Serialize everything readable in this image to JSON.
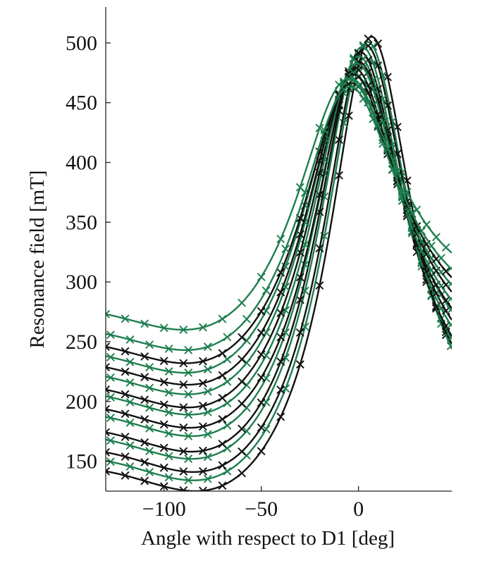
{
  "chart_data": {
    "type": "line",
    "xlabel": "Angle with respect to D1 [deg]",
    "ylabel": "Resonance field [mT]",
    "xlim": [
      -130,
      48
    ],
    "ylim": [
      125,
      530
    ],
    "xticks": [
      -100,
      -50,
      0
    ],
    "yticks": [
      150,
      200,
      250,
      300,
      350,
      400,
      450,
      500
    ],
    "xtick_labels": [
      "−100",
      "−50",
      "0"
    ],
    "ytick_labels": [
      "150",
      "200",
      "250",
      "300",
      "350",
      "400",
      "450",
      "500"
    ],
    "grid": false,
    "legend": "none",
    "colors": {
      "black": "#111111",
      "green": "#1e7e4e"
    },
    "marker": "x",
    "marker_x": [
      -130,
      -120,
      -110,
      -100,
      -90,
      -80,
      -70,
      -60,
      -50,
      -40,
      -30,
      -20,
      -10,
      -5,
      0,
      5,
      10,
      15,
      20,
      25,
      30,
      35,
      40,
      45
    ],
    "curve_params": [
      {
        "color": "black",
        "amp": 378,
        "center": 6,
        "width": 26.4,
        "base": 137,
        "mincenter": -84,
        "minwidth": 43
      },
      {
        "color": "green",
        "amp": 365,
        "center": 4,
        "width": 26.8,
        "base": 146,
        "mincenter": -85,
        "minwidth": 43
      },
      {
        "color": "black",
        "amp": 356,
        "center": 3,
        "width": 27.2,
        "base": 153,
        "mincenter": -85,
        "minwidth": 43
      },
      {
        "color": "green",
        "amp": 344,
        "center": 1,
        "width": 27.6,
        "base": 164,
        "mincenter": -86,
        "minwidth": 44
      },
      {
        "color": "black",
        "amp": 334,
        "center": 0,
        "width": 28.0,
        "base": 170,
        "mincenter": -86,
        "minwidth": 44
      },
      {
        "color": "green",
        "amp": 318,
        "center": -1,
        "width": 28.4,
        "base": 183,
        "mincenter": -86,
        "minwidth": 44
      },
      {
        "color": "black",
        "amp": 305,
        "center": -1,
        "width": 28.8,
        "base": 190,
        "mincenter": -87,
        "minwidth": 44
      },
      {
        "color": "green",
        "amp": 293,
        "center": -2,
        "width": 29.2,
        "base": 201,
        "mincenter": -87,
        "minwidth": 45
      },
      {
        "color": "black",
        "amp": 282,
        "center": -3,
        "width": 29.6,
        "base": 207,
        "mincenter": -88,
        "minwidth": 45
      },
      {
        "color": "green",
        "amp": 268,
        "center": -4,
        "width": 30.0,
        "base": 218,
        "mincenter": -88,
        "minwidth": 45
      },
      {
        "color": "black",
        "amp": 258,
        "center": -4,
        "width": 30.4,
        "base": 226,
        "mincenter": -88,
        "minwidth": 45
      },
      {
        "color": "green",
        "amp": 244,
        "center": -5,
        "width": 30.8,
        "base": 236,
        "mincenter": -89,
        "minwidth": 46
      },
      {
        "color": "black",
        "amp": 232,
        "center": -5,
        "width": 31.2,
        "base": 244,
        "mincenter": -89,
        "minwidth": 46
      },
      {
        "color": "green",
        "amp": 218,
        "center": -6,
        "width": 31.6,
        "base": 255,
        "mincenter": -89,
        "minwidth": 46
      },
      {
        "color": "green",
        "amp": 207,
        "center": -7,
        "width": 32.0,
        "base": 272,
        "mincenter": -90,
        "minwidth": 46
      }
    ]
  }
}
